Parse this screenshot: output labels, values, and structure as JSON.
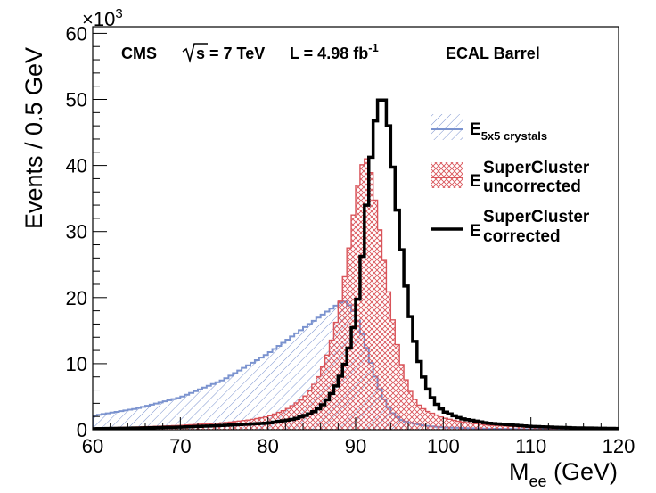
{
  "chart_data": {
    "type": "histogram",
    "xlabel": {
      "main": "M",
      "sub": "ee",
      "unit": " (GeV)"
    },
    "ylabel": "Events / 0.5 GeV",
    "y_multiplier": {
      "base": "×10",
      "exp": "3"
    },
    "xlim": [
      60,
      120
    ],
    "ylim": [
      0,
      61
    ],
    "x_ticks": [
      60,
      70,
      80,
      90,
      100,
      110,
      120
    ],
    "y_ticks": [
      0,
      10,
      20,
      30,
      40,
      50,
      60
    ],
    "bin_width": 0.5,
    "units_y": "thousands of events",
    "annotations": {
      "experiment": "CMS",
      "sqrt_s": "s = 7 TeV",
      "lumi": "L = 4.98 fb",
      "lumi_exp": "-1",
      "region": "ECAL Barrel"
    },
    "legend_position": "right",
    "series": [
      {
        "legend_main": "E",
        "legend_sub": "5x5 crystals",
        "legend_sup": "",
        "color": "#7b93cf",
        "style": "hatched-diagonal",
        "sample_points": [
          [
            60,
            2.1
          ],
          [
            65,
            3.2
          ],
          [
            70,
            4.9
          ],
          [
            75,
            7.6
          ],
          [
            80,
            11.5
          ],
          [
            84,
            15.3
          ],
          [
            86,
            17.2
          ],
          [
            88,
            19.0
          ],
          [
            88.5,
            19.5
          ],
          [
            89,
            19.3
          ],
          [
            90,
            17.5
          ],
          [
            91,
            13.5
          ],
          [
            92,
            9.0
          ],
          [
            93,
            5.2
          ],
          [
            94,
            2.8
          ],
          [
            95,
            1.6
          ],
          [
            96,
            1.1
          ],
          [
            98,
            0.6
          ],
          [
            100,
            0.35
          ],
          [
            105,
            0.15
          ],
          [
            110,
            0.08
          ],
          [
            120,
            0.03
          ]
        ]
      },
      {
        "legend_main": "E",
        "legend_sub": "uncorrected",
        "legend_sup": "SuperCluster",
        "color": "#d9545a",
        "style": "hatched-cross",
        "sample_points": [
          [
            60,
            0.25
          ],
          [
            65,
            0.4
          ],
          [
            70,
            0.65
          ],
          [
            75,
            1.05
          ],
          [
            78,
            1.5
          ],
          [
            80,
            2.0
          ],
          [
            82,
            3.0
          ],
          [
            84,
            4.7
          ],
          [
            85,
            6.3
          ],
          [
            86,
            8.6
          ],
          [
            87,
            12.2
          ],
          [
            88,
            17.6
          ],
          [
            89,
            25.0
          ],
          [
            89.5,
            30.0
          ],
          [
            90,
            35.0
          ],
          [
            90.5,
            39.0
          ],
          [
            91,
            41.2
          ],
          [
            91.5,
            40.8
          ],
          [
            92,
            37.0
          ],
          [
            93,
            28.0
          ],
          [
            94,
            18.5
          ],
          [
            95,
            11.0
          ],
          [
            96,
            6.4
          ],
          [
            97,
            4.0
          ],
          [
            98,
            2.9
          ],
          [
            100,
            1.8
          ],
          [
            102,
            1.2
          ],
          [
            105,
            0.7
          ],
          [
            110,
            0.35
          ],
          [
            115,
            0.2
          ],
          [
            120,
            0.12
          ]
        ]
      },
      {
        "legend_main": "E",
        "legend_sub": "corrected",
        "legend_sup": "SuperCluster",
        "color": "#000000",
        "style": "line",
        "sample_points": [
          [
            60,
            0.15
          ],
          [
            65,
            0.25
          ],
          [
            70,
            0.4
          ],
          [
            75,
            0.65
          ],
          [
            80,
            1.0
          ],
          [
            83,
            1.6
          ],
          [
            85,
            2.5
          ],
          [
            86,
            3.4
          ],
          [
            87,
            4.9
          ],
          [
            88,
            7.2
          ],
          [
            89,
            10.8
          ],
          [
            90,
            17.0
          ],
          [
            90.5,
            22.5
          ],
          [
            91,
            30.0
          ],
          [
            91.5,
            38.0
          ],
          [
            92,
            44.5
          ],
          [
            92.5,
            49.0
          ],
          [
            93,
            50.8
          ],
          [
            93.5,
            49.0
          ],
          [
            94,
            43.0
          ],
          [
            95,
            30.0
          ],
          [
            96,
            19.0
          ],
          [
            97,
            11.5
          ],
          [
            98,
            6.8
          ],
          [
            99,
            4.2
          ],
          [
            100,
            2.8
          ],
          [
            102,
            1.7
          ],
          [
            105,
            1.0
          ],
          [
            110,
            0.5
          ],
          [
            115,
            0.28
          ],
          [
            120,
            0.18
          ]
        ]
      }
    ]
  }
}
